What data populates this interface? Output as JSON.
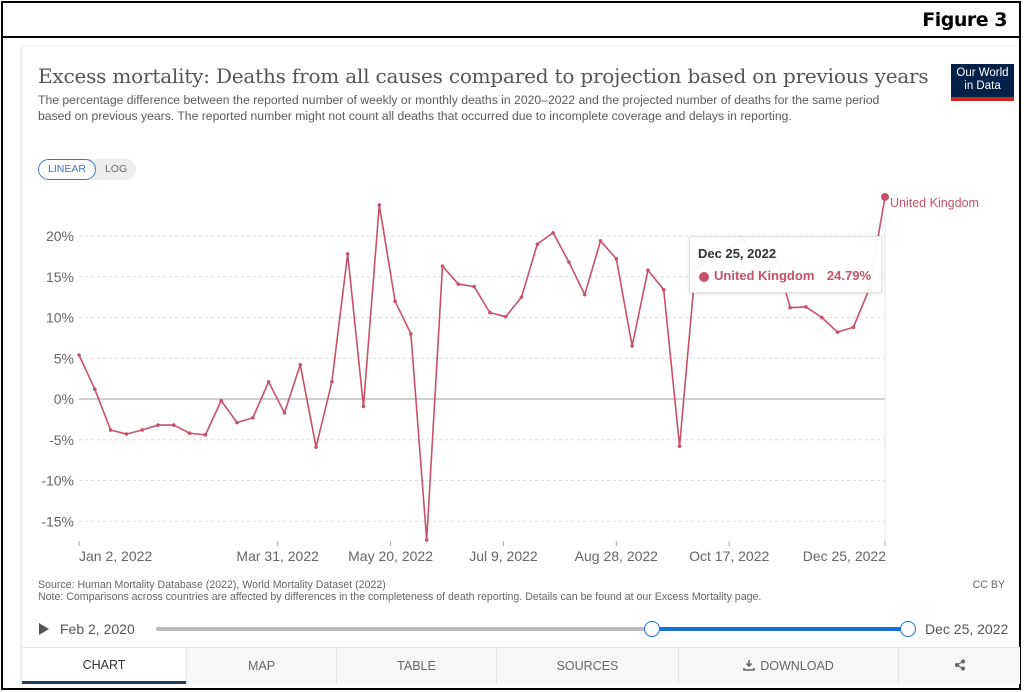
{
  "figure_label": "Figure 3",
  "header": {
    "title": "Excess mortality: Deaths from all causes compared to projection based on previous years",
    "subtitle": "The percentage difference between the reported number of weekly or monthly deaths in 2020–2022 and the projected number of deaths for the same period based on previous years. The reported number might not count all deaths that occurred due to incomplete coverage and delays in reporting.",
    "logo_line1": "Our World",
    "logo_line2": "in Data"
  },
  "scale_toggle": {
    "options": [
      "LINEAR",
      "LOG"
    ],
    "selected": "LINEAR"
  },
  "colors": {
    "series": "#c8506a",
    "logo_bg": "#002147",
    "logo_stripe": "#ce261e",
    "slider": "#1a70d6",
    "toggle_active": "#3f74c3"
  },
  "tooltip": {
    "date": "Dec 25, 2022",
    "series": "United Kingdom",
    "value": "24.79%"
  },
  "chart_data": {
    "type": "line",
    "title": "Excess mortality: Deaths from all causes compared to projection based on previous years",
    "xlabel": "",
    "ylabel": "",
    "ylim": [
      -17.5,
      25
    ],
    "yticks": [
      -15,
      -10,
      -5,
      0,
      5,
      10,
      15,
      20
    ],
    "ytick_labels": [
      "-15%",
      "-10%",
      "-5%",
      "0%",
      "5%",
      "10%",
      "15%",
      "20%"
    ],
    "xtick_labels": [
      "Jan 2, 2022",
      "Mar 31, 2022",
      "May 20, 2022",
      "Jul 9, 2022",
      "Aug 28, 2022",
      "Oct 17, 2022",
      "Dec 25, 2022"
    ],
    "xtick_days": [
      0,
      88,
      138,
      188,
      238,
      288,
      357
    ],
    "x_start": "Jan 2, 2022",
    "x_step_days": 7,
    "grid": true,
    "legend": "end-of-line label",
    "series": [
      {
        "name": "United Kingdom",
        "values": [
          5.4,
          1.2,
          -3.8,
          -4.3,
          -3.8,
          -3.2,
          -3.2,
          -4.2,
          -4.4,
          -0.2,
          -2.9,
          -2.3,
          2.1,
          -1.7,
          4.2,
          -5.9,
          2.1,
          17.8,
          -0.9,
          23.8,
          12.0,
          8.0,
          -17.3,
          16.3,
          14.1,
          13.8,
          10.6,
          10.1,
          12.5,
          19.0,
          20.4,
          16.8,
          12.8,
          19.4,
          17.2,
          6.5,
          15.8,
          13.4,
          -5.8,
          16.0,
          17.0,
          18.2,
          19.8,
          16.4,
          18.3,
          11.2,
          11.3,
          10.0,
          8.2,
          8.8,
          13.5,
          24.79
        ]
      }
    ]
  },
  "footer": {
    "source": "Source: Human Mortality Database (2022), World Mortality Dataset (2022)",
    "note": "Note: Comparisons across countries are affected by differences in the completeness of death reporting. Details can be found at our Excess Mortality page.",
    "license": "CC BY"
  },
  "timeline": {
    "start_label": "Feb 2, 2020",
    "end_label": "Dec 25, 2022",
    "range_start_fraction": 0.66,
    "range_end_fraction": 1.0
  },
  "tabs": [
    {
      "label": "CHART",
      "icon": ""
    },
    {
      "label": "MAP",
      "icon": ""
    },
    {
      "label": "TABLE",
      "icon": ""
    },
    {
      "label": "SOURCES",
      "icon": ""
    },
    {
      "label": "DOWNLOAD",
      "icon": "download-icon"
    },
    {
      "label": "",
      "icon": "share-icon"
    }
  ]
}
